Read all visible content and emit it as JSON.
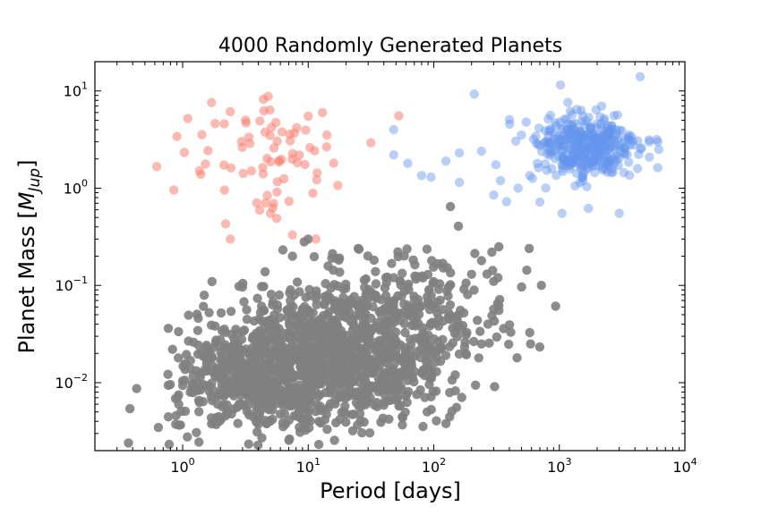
{
  "chart_data": {
    "type": "scatter",
    "title": "4000 Randomly Generated Planets",
    "xlabel": "Period [days]",
    "ylabel_prefix": "Planet Mass [",
    "ylabel_symbol": "M",
    "ylabel_subscript": "Jup",
    "ylabel_suffix": "]",
    "x_scale": "log",
    "y_scale": "log",
    "xlim": [
      0.2,
      10000
    ],
    "ylim": [
      0.002,
      20
    ],
    "grid": false,
    "x_ticks": [
      {
        "base": "10",
        "exp": "0",
        "value": 1
      },
      {
        "base": "10",
        "exp": "1",
        "value": 10
      },
      {
        "base": "10",
        "exp": "2",
        "value": 100
      },
      {
        "base": "10",
        "exp": "3",
        "value": 1000
      },
      {
        "base": "10",
        "exp": "4",
        "value": 10000
      }
    ],
    "y_ticks": [
      {
        "base": "10",
        "exp": "−2",
        "value": 0.01
      },
      {
        "base": "10",
        "exp": "−1",
        "value": 0.1
      },
      {
        "base": "10",
        "exp": "0",
        "value": 1
      },
      {
        "base": "10",
        "exp": "1",
        "value": 10
      }
    ],
    "series": [
      {
        "color": "#7f7f7f",
        "alpha": 0.9,
        "clusters": [
          {
            "logx": 1.25,
            "logy": -1.7,
            "sx": 0.42,
            "sy": 0.38,
            "n": 900
          },
          {
            "logx": 0.55,
            "logy": -1.95,
            "sx": 0.3,
            "sy": 0.3,
            "n": 450
          },
          {
            "logx": 1.9,
            "logy": -1.35,
            "sx": 0.35,
            "sy": 0.35,
            "n": 220
          }
        ],
        "points": [
          [
            0.38,
            0.0054
          ],
          [
            0.43,
            0.0087
          ],
          [
            0.37,
            0.0024
          ],
          [
            0.83,
            0.022
          ],
          [
            0.93,
            0.006
          ],
          [
            240,
            0.025
          ],
          [
            330,
            0.062
          ],
          [
            460,
            0.018
          ],
          [
            590,
            0.025
          ],
          [
            720,
            0.1
          ],
          [
            270,
            0.04
          ],
          [
            360,
            0.036
          ],
          [
            180,
            0.02
          ],
          [
            200,
            0.13
          ],
          [
            240,
            0.18
          ],
          [
            290,
            0.22
          ],
          [
            330,
            0.25
          ],
          [
            575,
            0.24
          ],
          [
            410,
            0.033
          ],
          [
            300,
            0.11
          ],
          [
            1.9,
            0.006
          ],
          [
            4.8,
            0.012
          ],
          [
            7.5,
            0.2
          ],
          [
            10,
            0.3
          ],
          [
            27,
            0.0021
          ],
          [
            48,
            0.12
          ],
          [
            40,
            0.055
          ],
          [
            25,
            0.24
          ],
          [
            30,
            0.002
          ],
          [
            55,
            0.009
          ]
        ]
      },
      {
        "color": "#fa8072",
        "alpha": 0.55,
        "clusters": [
          {
            "logx": 0.68,
            "logy": 0.35,
            "sx": 0.33,
            "sy": 0.28,
            "n": 70
          }
        ],
        "points": [
          [
            2.2,
            0.43
          ],
          [
            2.4,
            0.3
          ],
          [
            5.0,
            0.55
          ],
          [
            5.6,
            0.49
          ],
          [
            7.5,
            0.33
          ],
          [
            11.5,
            0.3
          ],
          [
            4.4,
            8.2
          ],
          [
            4.8,
            8.8
          ],
          [
            1.1,
            5.2
          ],
          [
            0.9,
            3.4
          ],
          [
            1.7,
            7.6
          ],
          [
            13,
            6.0
          ],
          [
            10,
            5.5
          ]
        ]
      },
      {
        "color": "#6495ed",
        "alpha": 0.45,
        "clusters": [
          {
            "logx": 3.2,
            "logy": 0.42,
            "sx": 0.22,
            "sy": 0.18,
            "n": 360
          }
        ],
        "points": [
          [
            48,
            2.2
          ],
          [
            48,
            4.0
          ],
          [
            62,
            1.8
          ],
          [
            80,
            1.35
          ],
          [
            95,
            1.3
          ],
          [
            125,
            1.9
          ],
          [
            160,
            2.3
          ],
          [
            160,
            1.15
          ],
          [
            210,
            9.3
          ],
          [
            240,
            2.4
          ],
          [
            300,
            0.85
          ],
          [
            340,
            1.2
          ],
          [
            380,
            0.73
          ],
          [
            1050,
            0.55
          ],
          [
            1700,
            0.62
          ],
          [
            3000,
            0.55
          ],
          [
            4400,
            14.0
          ],
          [
            1020,
            11.5
          ],
          [
            6200,
            2.5
          ],
          [
            5200,
            3.0
          ],
          [
            700,
            0.72
          ],
          [
            470,
            1.0
          ]
        ]
      }
    ]
  }
}
